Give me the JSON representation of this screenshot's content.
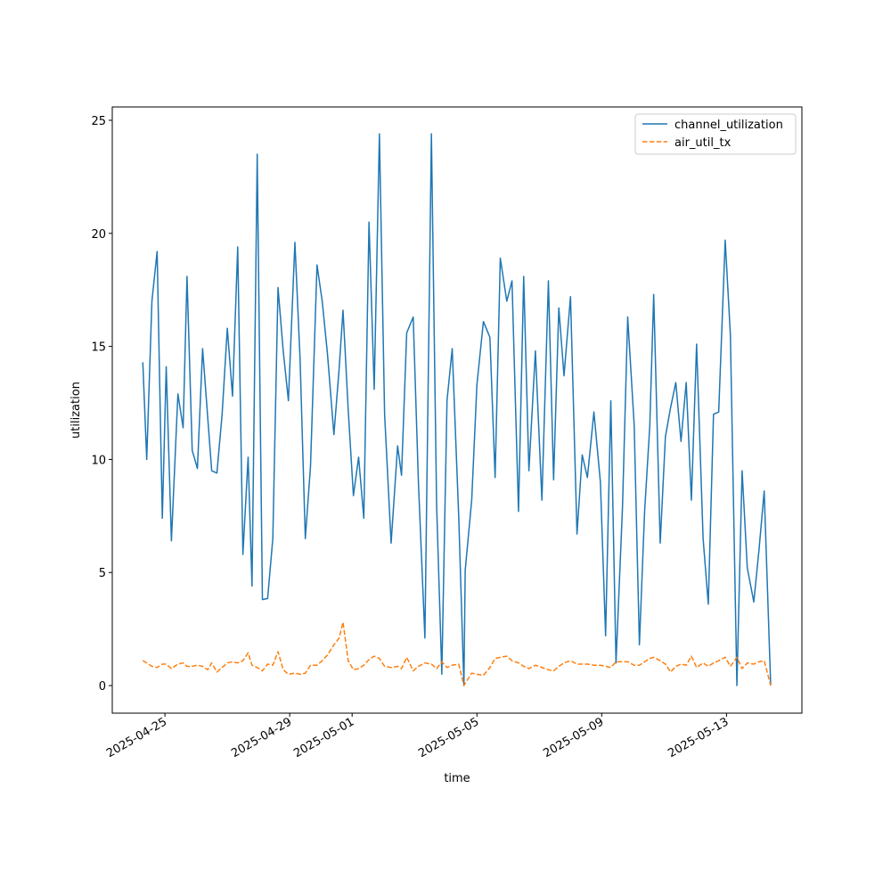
{
  "chart_data": {
    "type": "line",
    "xlabel": "time",
    "ylabel": "utilization",
    "x": [
      "2025-04-24T07:00",
      "2025-04-24T10:00",
      "2025-04-24T14:00",
      "2025-04-24T18:00",
      "2025-04-24T22:00",
      "2025-04-25T01:00",
      "2025-04-25T05:00",
      "2025-04-25T10:00",
      "2025-04-25T14:00",
      "2025-04-25T17:00",
      "2025-04-25T21:00",
      "2025-04-26T01:00",
      "2025-04-26T05:00",
      "2025-04-26T09:00",
      "2025-04-26T12:00",
      "2025-04-26T16:00",
      "2025-04-26T20:00",
      "2025-04-27T00:00",
      "2025-04-27T04:00",
      "2025-04-27T08:00",
      "2025-04-27T12:00",
      "2025-04-27T16:00",
      "2025-04-27T19:00",
      "2025-04-27T23:00",
      "2025-04-28T03:00",
      "2025-04-28T07:00",
      "2025-04-28T11:00",
      "2025-04-28T15:00",
      "2025-04-28T19:00",
      "2025-04-28T23:00",
      "2025-04-29T04:00",
      "2025-04-29T08:00",
      "2025-04-29T12:00",
      "2025-04-29T16:00",
      "2025-04-29T21:00",
      "2025-04-30T01:00",
      "2025-04-30T05:00",
      "2025-04-30T10:00",
      "2025-04-30T14:00",
      "2025-04-30T17:00",
      "2025-04-30T21:00",
      "2025-05-01T01:00",
      "2025-05-01T05:00",
      "2025-05-01T09:00",
      "2025-05-01T13:00",
      "2025-05-01T17:00",
      "2025-05-01T21:00",
      "2025-05-02T01:00",
      "2025-05-02T06:00",
      "2025-05-02T11:00",
      "2025-05-02T14:00",
      "2025-05-02T18:00",
      "2025-05-02T23:00",
      "2025-05-03T03:00",
      "2025-05-03T08:00",
      "2025-05-03T13:00",
      "2025-05-03T17:00",
      "2025-05-03T21:00",
      "2025-05-04T01:00",
      "2025-05-04T05:00",
      "2025-05-04T10:00",
      "2025-05-04T14:00",
      "2025-05-04T15:00",
      "2025-05-04T20:00",
      "2025-05-05T00:00",
      "2025-05-05T05:00",
      "2025-05-05T10:00",
      "2025-05-05T14:00",
      "2025-05-05T18:00",
      "2025-05-05T23:00",
      "2025-05-06T03:00",
      "2025-05-06T08:00",
      "2025-05-06T12:00",
      "2025-05-06T16:00",
      "2025-05-06T21:00",
      "2025-05-07T02:00",
      "2025-05-07T07:00",
      "2025-05-07T11:00",
      "2025-05-07T15:00",
      "2025-05-07T19:00",
      "2025-05-08T00:00",
      "2025-05-08T05:00",
      "2025-05-08T09:00",
      "2025-05-08T13:00",
      "2025-05-08T18:00",
      "2025-05-08T23:00",
      "2025-05-09T03:00",
      "2025-05-09T07:00",
      "2025-05-09T11:00",
      "2025-05-09T16:00",
      "2025-05-09T20:00",
      "2025-05-10T01:00",
      "2025-05-10T05:00",
      "2025-05-10T09:00",
      "2025-05-10T13:00",
      "2025-05-10T16:00",
      "2025-05-10T21:00",
      "2025-05-11T01:00",
      "2025-05-11T05:00",
      "2025-05-11T09:00",
      "2025-05-11T13:00",
      "2025-05-11T17:00",
      "2025-05-11T21:00",
      "2025-05-12T01:00",
      "2025-05-12T06:00",
      "2025-05-12T10:00",
      "2025-05-12T14:00",
      "2025-05-12T18:00",
      "2025-05-12T23:00",
      "2025-05-13T03:00",
      "2025-05-13T08:00",
      "2025-05-13T12:00",
      "2025-05-13T16:00",
      "2025-05-13T21:00",
      "2025-05-14T01:00",
      "2025-05-14T05:00",
      "2025-05-14T10:00"
    ],
    "series": [
      {
        "name": "channel_utilization",
        "color": "#1f77b4",
        "dash": "solid",
        "values": [
          14.3,
          10,
          17,
          19.2,
          7.4,
          14.1,
          6.4,
          12.9,
          11.4,
          18.1,
          10.4,
          9.6,
          14.9,
          11.8,
          9.5,
          9.4,
          12,
          15.8,
          12.8,
          19.4,
          5.8,
          10.1,
          4.4,
          23.5,
          3.8,
          3.85,
          6.5,
          17.6,
          14.8,
          12.6,
          19.6,
          14.4,
          6.5,
          9.7,
          18.6,
          17,
          14.7,
          11.1,
          14,
          16.6,
          12.2,
          8.4,
          10.1,
          7.4,
          20.5,
          13.1,
          24.4,
          12,
          6.3,
          10.6,
          9.3,
          15.6,
          16.3,
          9,
          2.1,
          24.4,
          8,
          0.5,
          12.6,
          14.9,
          7.5,
          0,
          5.1,
          8.2,
          13.3,
          16.1,
          15.4,
          9.2,
          18.9,
          17,
          17.9,
          7.7,
          18.1,
          9.5,
          14.8,
          8.2,
          17.9,
          9.1,
          16.7,
          13.7,
          17.2,
          6.7,
          10.2,
          9.2,
          12.1,
          9,
          2.2,
          12.6,
          1,
          7.9,
          16.3,
          11.5,
          1.8,
          7.7,
          11.5,
          17.3,
          6.3,
          11,
          12.3,
          13.4,
          10.8,
          13.4,
          8.2,
          15.1,
          6.5,
          3.6,
          12,
          12.1,
          19.7,
          15.5,
          0,
          9.5,
          5.2,
          3.7,
          6,
          8.6,
          0
        ]
      },
      {
        "name": "air_util_tx",
        "color": "#ff7f0e",
        "dash": "dashed",
        "values": [
          1.1,
          1.0,
          0.85,
          0.8,
          0.95,
          0.95,
          0.75,
          0.95,
          1.0,
          0.85,
          0.85,
          0.9,
          0.85,
          0.7,
          1.0,
          0.6,
          0.8,
          1.0,
          1.05,
          1.0,
          1.1,
          1.45,
          0.9,
          0.8,
          0.65,
          0.95,
          0.9,
          1.5,
          0.7,
          0.5,
          0.55,
          0.5,
          0.55,
          0.9,
          0.9,
          1.1,
          1.35,
          1.8,
          2.1,
          2.8,
          1.1,
          0.7,
          0.75,
          0.9,
          1.15,
          1.3,
          1.2,
          0.85,
          0.8,
          0.85,
          0.75,
          1.25,
          0.65,
          0.85,
          1.0,
          0.95,
          0.75,
          1.05,
          0.8,
          0.9,
          0.95,
          0.0,
          0.1,
          0.55,
          0.5,
          0.45,
          0.8,
          1.2,
          1.25,
          1.3,
          1.1,
          1.0,
          0.85,
          0.75,
          0.9,
          0.8,
          0.7,
          0.65,
          0.85,
          1.0,
          1.1,
          0.95,
          0.95,
          0.95,
          0.9,
          0.9,
          0.85,
          0.8,
          1.05,
          1.05,
          1.05,
          0.9,
          0.9,
          1.05,
          1.2,
          1.25,
          1.1,
          0.95,
          0.6,
          0.85,
          0.95,
          0.9,
          1.3,
          0.8,
          1.0,
          0.85,
          1.0,
          1.1,
          1.25,
          0.85,
          1.25,
          0.75,
          1.0,
          0.95,
          1.05,
          1.1,
          0.0
        ]
      }
    ],
    "xlim": [
      "2025-04-23T07:30",
      "2025-05-15T10:00"
    ],
    "xticks": [
      "2025-04-25",
      "2025-04-29",
      "2025-05-01",
      "2025-05-05",
      "2025-05-09",
      "2025-05-13"
    ],
    "ylim": [
      -1.22,
      25.59
    ],
    "yticks": [
      0,
      5,
      10,
      15,
      20,
      25
    ],
    "grid": false,
    "legend": "upper right"
  }
}
